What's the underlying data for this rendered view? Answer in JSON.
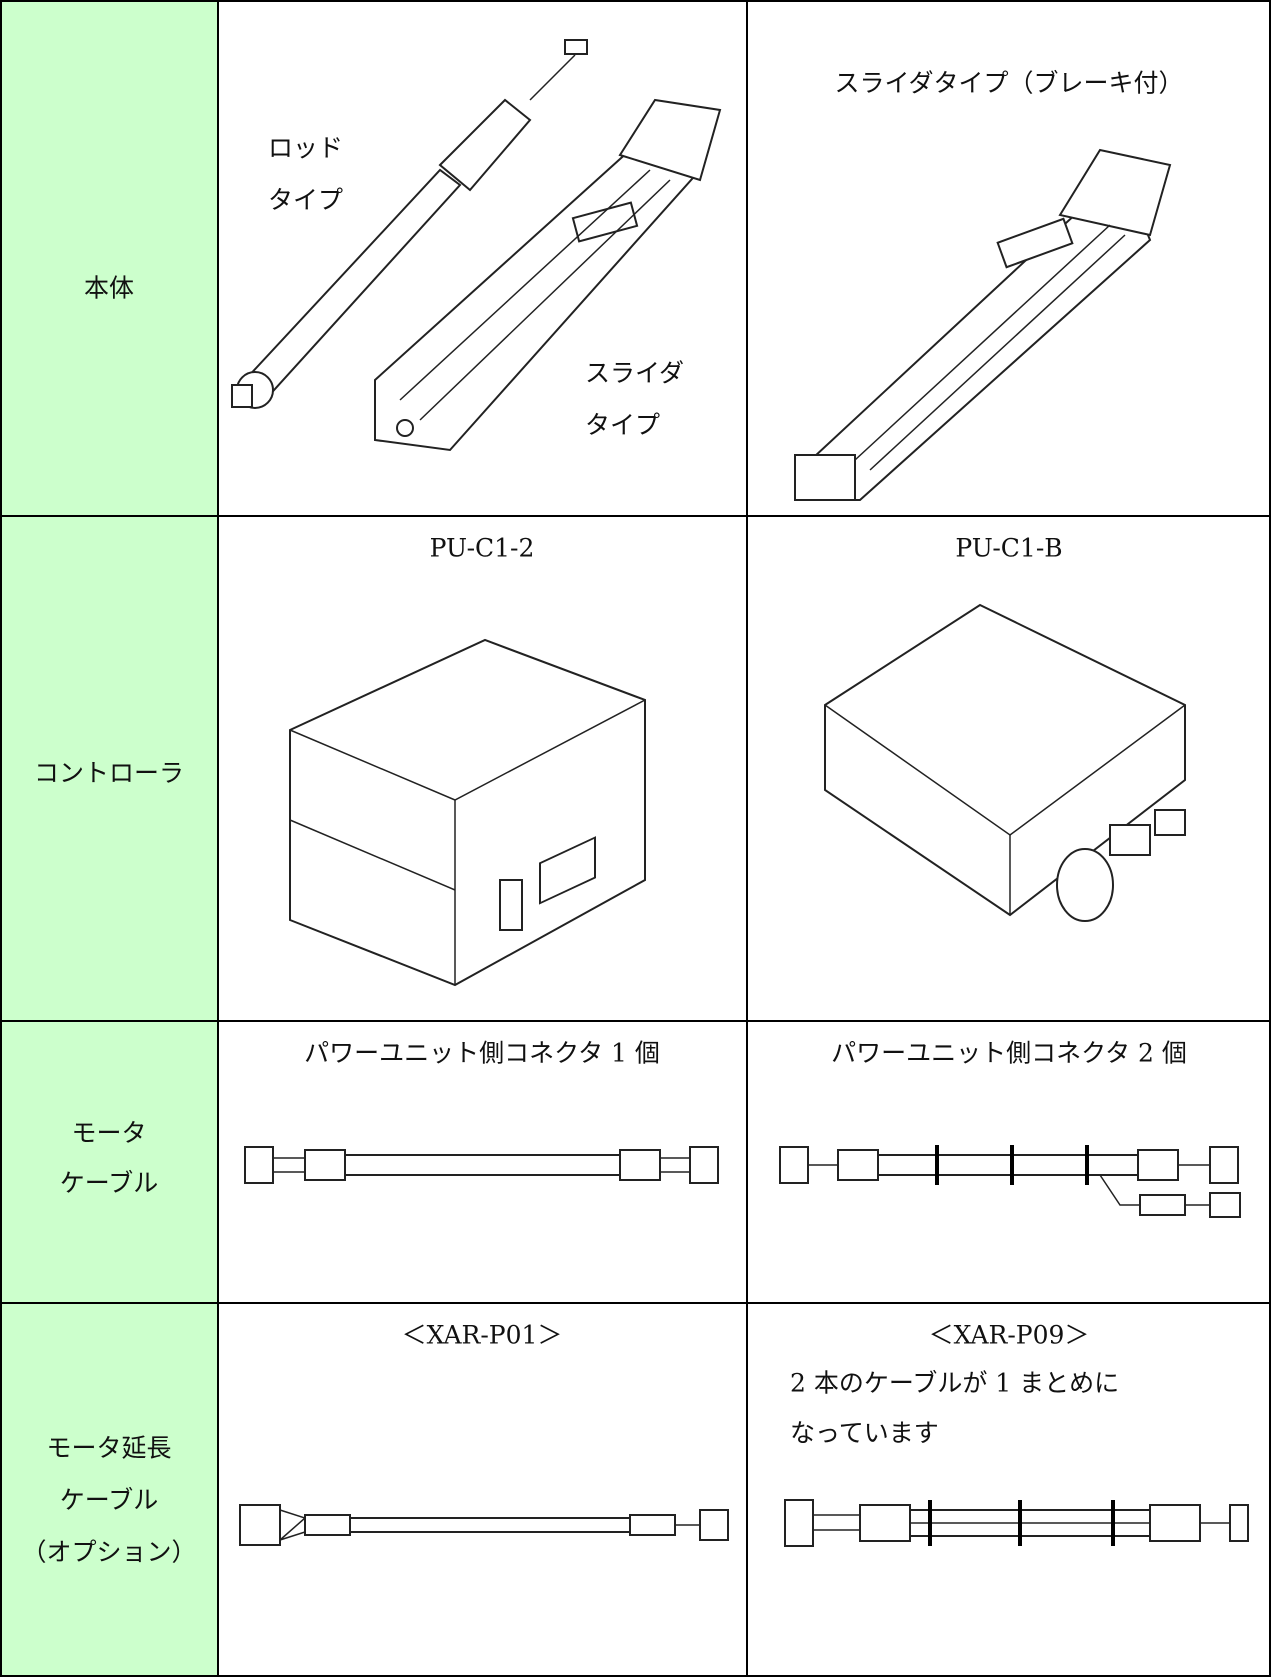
{
  "table": {
    "rows": [
      {
        "label": [
          "本体"
        ],
        "left": {
          "rod_label": [
            "ロッド",
            "タイプ"
          ],
          "slider_label": [
            "スライダ",
            "タイプ"
          ]
        },
        "right": {
          "caption": "スライダタイプ（ブレーキ付）"
        }
      },
      {
        "label": [
          "コントローラ"
        ],
        "left": {
          "caption": "PU-C1-2"
        },
        "right": {
          "caption": "PU-C1-B"
        }
      },
      {
        "label": [
          "モータ",
          "ケーブル"
        ],
        "left": {
          "caption": "パワーユニット側コネクタ 1 個"
        },
        "right": {
          "caption": "パワーユニット側コネクタ 2 個"
        }
      },
      {
        "label": [
          "モータ延長",
          "ケーブル",
          "（オプション）"
        ],
        "left": {
          "caption": "＜XAR-P01＞"
        },
        "right": {
          "caption": "＜XAR-P09＞",
          "note": [
            "2 本のケーブルが 1 まとめに",
            "なっています"
          ]
        }
      }
    ]
  }
}
